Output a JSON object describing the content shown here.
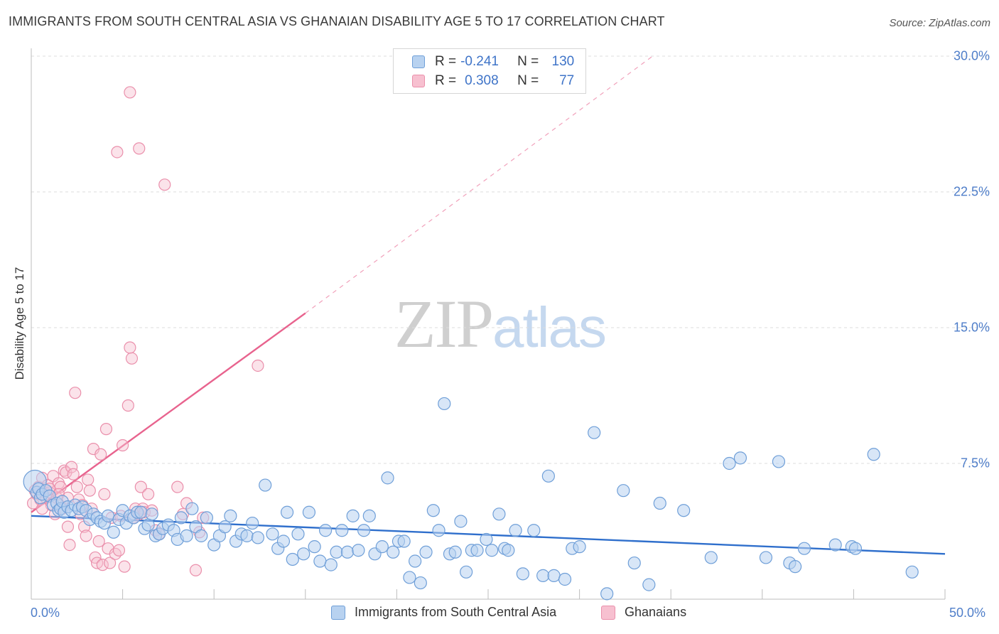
{
  "title": "IMMIGRANTS FROM SOUTH CENTRAL ASIA VS GHANAIAN DISABILITY AGE 5 TO 17 CORRELATION CHART",
  "source": "Source: ZipAtlas.com",
  "watermark": {
    "zip": "ZIP",
    "atlas": "atlas"
  },
  "colors": {
    "blue_fill": "#b8d2f0",
    "blue_stroke": "#6f9fd8",
    "blue_line": "#2f6fcc",
    "pink_fill": "#f7c0d0",
    "pink_stroke": "#ea8fab",
    "pink_line": "#e8638e",
    "grid": "#dcdcdc",
    "axis_text": "#4f7ec9"
  },
  "legend": {
    "r_label": "R =",
    "n_label": "N =",
    "blue": {
      "r": "-0.241",
      "n": "130"
    },
    "pink": {
      "r": "0.308",
      "n": "77"
    }
  },
  "chart_data": {
    "type": "scatter",
    "title": "IMMIGRANTS FROM SOUTH CENTRAL ASIA VS GHANAIAN DISABILITY AGE 5 TO 17 CORRELATION CHART",
    "xlabel": "",
    "ylabel": "Disability Age 5 to 17",
    "xlim": [
      0,
      50
    ],
    "ylim": [
      0,
      30
    ],
    "x_tick_labels": [
      "0.0%",
      "50.0%"
    ],
    "y_ticks": [
      7.5,
      15.0,
      22.5,
      30.0
    ],
    "y_tick_labels": [
      "7.5%",
      "15.0%",
      "22.5%",
      "30.0%"
    ],
    "grid": true,
    "legend_position": "top-center",
    "series": [
      {
        "name": "Immigrants from South Central Asia",
        "color": "#6f9fd8",
        "trend": {
          "x": [
            0,
            50
          ],
          "y": [
            4.6,
            2.5
          ],
          "dashed_extension": false
        },
        "points": [
          [
            0.2,
            6.5
          ],
          [
            0.3,
            5.9
          ],
          [
            0.4,
            6.1
          ],
          [
            0.5,
            5.6
          ],
          [
            0.6,
            5.8
          ],
          [
            0.8,
            6.0
          ],
          [
            1.0,
            5.7
          ],
          [
            1.2,
            5.2
          ],
          [
            1.4,
            5.3
          ],
          [
            1.5,
            4.9
          ],
          [
            1.6,
            5.0
          ],
          [
            1.7,
            5.4
          ],
          [
            1.8,
            4.8
          ],
          [
            2.0,
            5.1
          ],
          [
            2.2,
            4.9
          ],
          [
            2.4,
            5.2
          ],
          [
            2.6,
            5.0
          ],
          [
            2.8,
            5.1
          ],
          [
            3.0,
            4.9
          ],
          [
            3.2,
            4.4
          ],
          [
            3.4,
            4.7
          ],
          [
            3.6,
            4.5
          ],
          [
            3.8,
            4.3
          ],
          [
            4.0,
            4.2
          ],
          [
            4.2,
            4.6
          ],
          [
            4.5,
            3.7
          ],
          [
            4.8,
            4.4
          ],
          [
            5.0,
            4.9
          ],
          [
            5.2,
            4.2
          ],
          [
            5.4,
            4.6
          ],
          [
            5.6,
            4.5
          ],
          [
            5.8,
            4.8
          ],
          [
            6.0,
            4.8
          ],
          [
            6.2,
            3.9
          ],
          [
            6.4,
            4.1
          ],
          [
            6.6,
            4.7
          ],
          [
            6.8,
            3.5
          ],
          [
            7.0,
            3.6
          ],
          [
            7.2,
            3.9
          ],
          [
            7.5,
            4.1
          ],
          [
            7.8,
            3.8
          ],
          [
            8.0,
            3.3
          ],
          [
            8.2,
            4.5
          ],
          [
            8.5,
            3.5
          ],
          [
            8.8,
            5.0
          ],
          [
            9.0,
            4.0
          ],
          [
            9.3,
            3.5
          ],
          [
            9.6,
            4.5
          ],
          [
            10.0,
            3.0
          ],
          [
            10.3,
            3.5
          ],
          [
            10.6,
            4.0
          ],
          [
            10.9,
            4.6
          ],
          [
            11.2,
            3.2
          ],
          [
            11.5,
            3.6
          ],
          [
            11.8,
            3.5
          ],
          [
            12.1,
            4.2
          ],
          [
            12.4,
            3.4
          ],
          [
            12.8,
            6.3
          ],
          [
            13.2,
            3.6
          ],
          [
            13.5,
            2.8
          ],
          [
            13.8,
            3.2
          ],
          [
            14.0,
            4.8
          ],
          [
            14.3,
            2.2
          ],
          [
            14.6,
            3.6
          ],
          [
            14.9,
            2.5
          ],
          [
            15.2,
            4.8
          ],
          [
            15.5,
            2.9
          ],
          [
            15.8,
            2.1
          ],
          [
            16.1,
            3.8
          ],
          [
            16.4,
            1.9
          ],
          [
            16.7,
            2.6
          ],
          [
            17.0,
            3.8
          ],
          [
            17.3,
            2.6
          ],
          [
            17.6,
            4.6
          ],
          [
            17.9,
            2.7
          ],
          [
            18.2,
            3.8
          ],
          [
            18.5,
            4.6
          ],
          [
            18.8,
            2.5
          ],
          [
            19.2,
            2.9
          ],
          [
            19.5,
            6.7
          ],
          [
            19.8,
            2.6
          ],
          [
            20.1,
            3.2
          ],
          [
            20.4,
            3.2
          ],
          [
            20.7,
            1.2
          ],
          [
            21.0,
            2.1
          ],
          [
            21.3,
            0.9
          ],
          [
            21.6,
            2.6
          ],
          [
            22.0,
            4.9
          ],
          [
            22.3,
            3.8
          ],
          [
            22.6,
            10.8
          ],
          [
            22.9,
            2.5
          ],
          [
            23.2,
            2.6
          ],
          [
            23.5,
            4.3
          ],
          [
            23.8,
            1.5
          ],
          [
            24.1,
            2.7
          ],
          [
            24.4,
            2.7
          ],
          [
            24.9,
            3.3
          ],
          [
            25.2,
            2.7
          ],
          [
            25.6,
            4.7
          ],
          [
            25.9,
            2.8
          ],
          [
            26.1,
            2.7
          ],
          [
            26.5,
            3.8
          ],
          [
            26.9,
            1.4
          ],
          [
            27.5,
            3.8
          ],
          [
            28.0,
            1.3
          ],
          [
            28.3,
            6.8
          ],
          [
            28.6,
            1.3
          ],
          [
            29.2,
            1.1
          ],
          [
            29.6,
            2.8
          ],
          [
            30.0,
            2.9
          ],
          [
            30.8,
            9.2
          ],
          [
            31.5,
            0.3
          ],
          [
            32.4,
            6.0
          ],
          [
            33.0,
            2.0
          ],
          [
            33.8,
            0.8
          ],
          [
            34.4,
            5.3
          ],
          [
            35.7,
            4.9
          ],
          [
            37.2,
            2.3
          ],
          [
            38.2,
            7.5
          ],
          [
            38.8,
            7.8
          ],
          [
            40.2,
            2.3
          ],
          [
            40.9,
            7.6
          ],
          [
            41.5,
            2.0
          ],
          [
            41.8,
            1.8
          ],
          [
            42.3,
            2.8
          ],
          [
            44.0,
            3.0
          ],
          [
            44.9,
            2.9
          ],
          [
            45.1,
            2.8
          ],
          [
            46.1,
            8.0
          ],
          [
            48.2,
            1.5
          ]
        ]
      },
      {
        "name": "Ghanaians",
        "color": "#ea8fab",
        "trend": {
          "x": [
            0,
            15
          ],
          "y": [
            4.8,
            15.8
          ],
          "dashed_extension": true,
          "dashed_to": [
            34.0,
            30.0
          ]
        },
        "points": [
          [
            0.1,
            5.3
          ],
          [
            0.2,
            6.0
          ],
          [
            0.3,
            5.8
          ],
          [
            0.4,
            6.2
          ],
          [
            0.5,
            5.5
          ],
          [
            0.6,
            6.7
          ],
          [
            0.7,
            5.9
          ],
          [
            0.8,
            5.6
          ],
          [
            0.9,
            6.3
          ],
          [
            1.0,
            5.9
          ],
          [
            1.1,
            5.2
          ],
          [
            1.2,
            6.8
          ],
          [
            1.3,
            4.7
          ],
          [
            1.4,
            5.6
          ],
          [
            1.5,
            6.4
          ],
          [
            1.6,
            6.2
          ],
          [
            1.7,
            5.0
          ],
          [
            1.8,
            7.1
          ],
          [
            1.9,
            7.0
          ],
          [
            2.0,
            4.0
          ],
          [
            2.1,
            3.0
          ],
          [
            2.2,
            7.3
          ],
          [
            2.3,
            6.9
          ],
          [
            2.4,
            11.4
          ],
          [
            2.5,
            6.2
          ],
          [
            2.6,
            5.5
          ],
          [
            2.7,
            4.7
          ],
          [
            2.8,
            5.2
          ],
          [
            2.9,
            4.0
          ],
          [
            3.0,
            3.5
          ],
          [
            3.1,
            6.6
          ],
          [
            3.2,
            6.0
          ],
          [
            3.3,
            5.0
          ],
          [
            3.4,
            8.3
          ],
          [
            3.5,
            2.3
          ],
          [
            3.6,
            2.0
          ],
          [
            3.7,
            3.2
          ],
          [
            3.8,
            8.0
          ],
          [
            3.9,
            1.9
          ],
          [
            4.0,
            5.8
          ],
          [
            4.1,
            9.4
          ],
          [
            4.2,
            2.8
          ],
          [
            4.3,
            2.0
          ],
          [
            4.4,
            4.5
          ],
          [
            4.6,
            2.5
          ],
          [
            4.8,
            2.7
          ],
          [
            4.9,
            4.6
          ],
          [
            5.0,
            8.5
          ],
          [
            5.1,
            1.8
          ],
          [
            5.3,
            10.7
          ],
          [
            5.4,
            13.9
          ],
          [
            5.5,
            13.3
          ],
          [
            5.6,
            4.5
          ],
          [
            5.7,
            5.0
          ],
          [
            5.9,
            4.7
          ],
          [
            6.0,
            6.2
          ],
          [
            6.1,
            5.0
          ],
          [
            6.2,
            4.8
          ],
          [
            6.4,
            5.8
          ],
          [
            6.6,
            4.9
          ],
          [
            6.8,
            3.8
          ],
          [
            7.0,
            3.6
          ],
          [
            4.7,
            24.7
          ],
          [
            5.4,
            28.0
          ],
          [
            5.9,
            24.9
          ],
          [
            7.3,
            22.9
          ],
          [
            8.0,
            6.2
          ],
          [
            8.3,
            4.7
          ],
          [
            8.5,
            5.3
          ],
          [
            9.0,
            1.6
          ],
          [
            9.2,
            3.7
          ],
          [
            9.4,
            4.5
          ],
          [
            12.4,
            12.9
          ],
          [
            1.0,
            6.1
          ],
          [
            1.5,
            5.8
          ],
          [
            2.0,
            5.6
          ],
          [
            0.6,
            5.0
          ]
        ]
      }
    ]
  },
  "bottom_legend": {
    "blue_label": "Immigrants from South Central Asia",
    "pink_label": "Ghanaians"
  }
}
